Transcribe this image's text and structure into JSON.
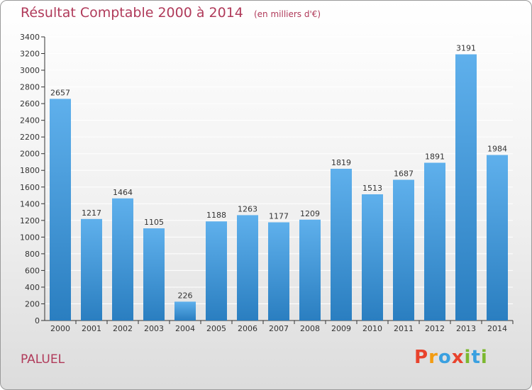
{
  "header": {
    "title": "Résultat Comptable 2000 à 2014",
    "unit": "(en milliers d'€)"
  },
  "commune": "PALUEL",
  "logo": {
    "letters": [
      "P",
      "r",
      "o",
      "x",
      "i",
      "t",
      "i"
    ],
    "colors": [
      "#e8432d",
      "#f39c12",
      "#3aa0e0",
      "#e8432d",
      "#7cb82f",
      "#3aa0e0",
      "#7cb82f"
    ]
  },
  "colors": {
    "bar_light": "#5fb0ec",
    "bar_dark": "#2a7ec0",
    "grid": "#ffffff",
    "axis": "#333333"
  },
  "chart_data": {
    "type": "bar",
    "title": "Résultat Comptable 2000 à 2014",
    "ylabel": "en milliers d'€",
    "xlabel": "",
    "categories": [
      "2000",
      "2001",
      "2002",
      "2003",
      "2004",
      "2005",
      "2006",
      "2007",
      "2008",
      "2009",
      "2010",
      "2011",
      "2012",
      "2013",
      "2014"
    ],
    "values": [
      2657,
      1217,
      1464,
      1105,
      226,
      1188,
      1263,
      1177,
      1209,
      1819,
      1513,
      1687,
      1891,
      3191,
      1984
    ],
    "ylim": [
      0,
      3400
    ],
    "yticks": [
      0,
      200,
      400,
      600,
      800,
      1000,
      1200,
      1400,
      1600,
      1800,
      2000,
      2200,
      2400,
      2600,
      2800,
      3000,
      3200,
      3400
    ],
    "grid": true
  }
}
